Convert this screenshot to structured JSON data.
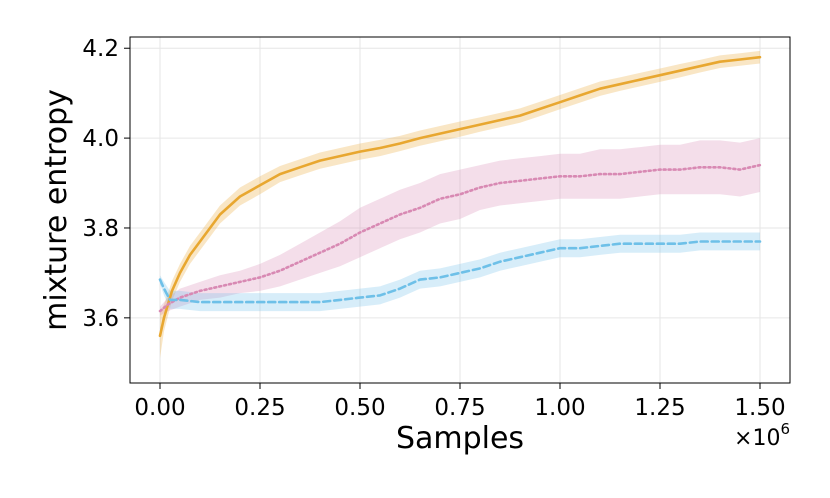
{
  "chart_data": {
    "type": "line",
    "xlabel": "Samples",
    "ylabel": "mixture entropy",
    "x_multiplier_text": "×10",
    "x_multiplier_exp": "6",
    "xlim": [
      -0.075,
      1.575
    ],
    "ylim": [
      3.455,
      4.225
    ],
    "x_ticks": [
      0.0,
      0.25,
      0.5,
      0.75,
      1.0,
      1.25,
      1.5
    ],
    "x_tick_labels": [
      "0.00",
      "0.25",
      "0.50",
      "0.75",
      "1.00",
      "1.25",
      "1.50"
    ],
    "y_ticks": [
      3.6,
      3.8,
      4.0,
      4.2
    ],
    "y_tick_labels": [
      "3.6",
      "3.8",
      "4.0",
      "4.2"
    ],
    "grid": true,
    "x_unit_scale": 1000000,
    "series": [
      {
        "color": "#E8A730",
        "dash": "solid",
        "x": [
          0,
          0.01,
          0.02,
          0.03,
          0.05,
          0.075,
          0.1,
          0.125,
          0.15,
          0.2,
          0.25,
          0.3,
          0.35,
          0.4,
          0.45,
          0.5,
          0.55,
          0.6,
          0.65,
          0.7,
          0.75,
          0.8,
          0.85,
          0.9,
          0.95,
          1.0,
          1.05,
          1.1,
          1.15,
          1.2,
          1.25,
          1.3,
          1.35,
          1.4,
          1.45,
          1.5
        ],
        "y": [
          3.56,
          3.6,
          3.63,
          3.66,
          3.7,
          3.74,
          3.77,
          3.8,
          3.83,
          3.87,
          3.895,
          3.92,
          3.935,
          3.95,
          3.96,
          3.97,
          3.978,
          3.988,
          4.0,
          4.01,
          4.02,
          4.03,
          4.04,
          4.05,
          4.065,
          4.08,
          4.095,
          4.11,
          4.12,
          4.13,
          4.14,
          4.15,
          4.16,
          4.17,
          4.175,
          4.18
        ],
        "band": [
          0.05,
          0.03,
          0.025,
          0.022,
          0.02,
          0.02,
          0.02,
          0.02,
          0.02,
          0.02,
          0.02,
          0.018,
          0.018,
          0.018,
          0.018,
          0.018,
          0.018,
          0.017,
          0.017,
          0.017,
          0.017,
          0.016,
          0.016,
          0.016,
          0.016,
          0.016,
          0.016,
          0.016,
          0.015,
          0.015,
          0.015,
          0.015,
          0.014,
          0.014,
          0.014,
          0.014
        ]
      },
      {
        "color": "#D889B3",
        "dash": "dotted",
        "x": [
          0,
          0.02,
          0.05,
          0.1,
          0.15,
          0.2,
          0.25,
          0.3,
          0.35,
          0.4,
          0.45,
          0.5,
          0.55,
          0.6,
          0.65,
          0.7,
          0.75,
          0.8,
          0.85,
          0.9,
          0.95,
          1.0,
          1.05,
          1.1,
          1.15,
          1.2,
          1.25,
          1.3,
          1.35,
          1.4,
          1.45,
          1.5
        ],
        "y": [
          3.615,
          3.63,
          3.645,
          3.66,
          3.67,
          3.68,
          3.69,
          3.705,
          3.725,
          3.745,
          3.765,
          3.79,
          3.81,
          3.83,
          3.845,
          3.865,
          3.875,
          3.89,
          3.9,
          3.905,
          3.91,
          3.915,
          3.915,
          3.92,
          3.92,
          3.925,
          3.93,
          3.93,
          3.935,
          3.935,
          3.93,
          3.94
        ],
        "band": [
          0.01,
          0.015,
          0.02,
          0.02,
          0.025,
          0.025,
          0.03,
          0.035,
          0.04,
          0.045,
          0.05,
          0.055,
          0.055,
          0.055,
          0.055,
          0.055,
          0.055,
          0.05,
          0.05,
          0.05,
          0.05,
          0.05,
          0.05,
          0.055,
          0.055,
          0.055,
          0.055,
          0.055,
          0.06,
          0.06,
          0.06,
          0.06
        ]
      },
      {
        "color": "#6EC0E8",
        "dash": "dashed",
        "x": [
          0,
          0.01,
          0.025,
          0.05,
          0.1,
          0.15,
          0.2,
          0.25,
          0.3,
          0.35,
          0.4,
          0.45,
          0.5,
          0.55,
          0.6,
          0.65,
          0.7,
          0.75,
          0.8,
          0.85,
          0.9,
          0.95,
          1.0,
          1.05,
          1.1,
          1.15,
          1.2,
          1.25,
          1.3,
          1.35,
          1.4,
          1.45,
          1.5
        ],
        "y": [
          3.685,
          3.665,
          3.64,
          3.64,
          3.635,
          3.635,
          3.635,
          3.635,
          3.635,
          3.635,
          3.635,
          3.64,
          3.645,
          3.65,
          3.665,
          3.685,
          3.69,
          3.7,
          3.71,
          3.725,
          3.735,
          3.745,
          3.755,
          3.755,
          3.76,
          3.765,
          3.765,
          3.765,
          3.765,
          3.77,
          3.77,
          3.77,
          3.77
        ],
        "band": [
          0.01,
          0.015,
          0.02,
          0.02,
          0.02,
          0.02,
          0.02,
          0.02,
          0.02,
          0.02,
          0.02,
          0.02,
          0.02,
          0.02,
          0.02,
          0.02,
          0.02,
          0.02,
          0.02,
          0.02,
          0.02,
          0.02,
          0.02,
          0.02,
          0.02,
          0.02,
          0.02,
          0.02,
          0.02,
          0.02,
          0.02,
          0.02,
          0.02
        ]
      }
    ]
  }
}
